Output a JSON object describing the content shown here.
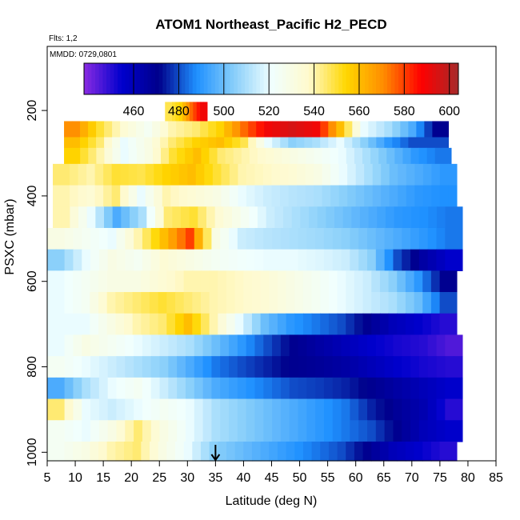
{
  "chart_data": {
    "type": "heatmap",
    "title": "ATOM1 Northeast_Pacific H2_PECD",
    "flights_label": "Flts: 1,2",
    "date_label": "MMDD: 0729,0801",
    "xlabel": "Latitude (deg N)",
    "ylabel": "PSXC (mbar)",
    "xlim": [
      5,
      85
    ],
    "ylim": [
      1020,
      50
    ],
    "y_inverted": true,
    "x_ticks": [
      "5",
      "10",
      "15",
      "20",
      "25",
      "30",
      "35",
      "40",
      "45",
      "50",
      "55",
      "60",
      "65",
      "70",
      "75",
      "80",
      "85"
    ],
    "y_ticks": [
      "200",
      "400",
      "600",
      "800",
      "1000"
    ],
    "marker": {
      "lat": 35,
      "label": "latitude marker"
    },
    "colorbar": {
      "min": 438,
      "max": 604,
      "ticks": [
        "460",
        "480",
        "500",
        "520",
        "540",
        "560",
        "580",
        "600"
      ],
      "colors": [
        "#8a2be2",
        "#0000cd",
        "#00008b",
        "#1e90ff",
        "#87cefa",
        "#f0ffff",
        "#fffacd",
        "#ffd700",
        "#ff8c00",
        "#ff0000",
        "#a52a2a"
      ]
    },
    "layers": [
      {
        "p": 200,
        "x0": 26,
        "x1": 33.5,
        "v": [
          548,
          555,
          575,
          590
        ]
      },
      {
        "p": 250,
        "x0": 8,
        "x1": 76.5,
        "v": [
          570,
          550,
          535,
          525,
          540,
          545,
          555,
          575,
          590,
          595,
          590,
          560,
          520,
          510,
          495,
          470
        ]
      },
      {
        "p": 275,
        "x0": 8,
        "x1": 76.5,
        "v": [
          560,
          545,
          520,
          530,
          545,
          555,
          560,
          548,
          520,
          505,
          510,
          520,
          505,
          490,
          480,
          480
        ]
      },
      {
        "p": 300,
        "x0": 8,
        "x1": 77,
        "v": [
          555,
          540,
          520,
          530,
          550,
          560,
          545,
          540,
          535,
          530,
          525,
          520,
          510,
          500,
          490,
          485
        ]
      },
      {
        "p": 350,
        "x0": 6,
        "x1": 78,
        "v": [
          545,
          540,
          550,
          548,
          555,
          560,
          550,
          540,
          538,
          535,
          530,
          520,
          510,
          500,
          495,
          490
        ]
      },
      {
        "p": 400,
        "x0": 6,
        "x1": 78,
        "v": [
          540,
          535,
          545,
          520,
          540,
          535,
          530,
          520,
          515,
          512,
          510,
          505,
          500,
          495,
          490,
          488
        ]
      },
      {
        "p": 450,
        "x0": 6,
        "x1": 79,
        "v": [
          540,
          520,
          495,
          510,
          545,
          550,
          535,
          525,
          515,
          510,
          505,
          500,
          495,
          490,
          488,
          485
        ]
      },
      {
        "p": 500,
        "x0": 5,
        "x1": 79,
        "v": [
          530,
          525,
          520,
          540,
          560,
          580,
          530,
          515,
          512,
          510,
          508,
          505,
          500,
          495,
          490,
          485
        ]
      },
      {
        "p": 550,
        "x0": 5,
        "x1": 79,
        "v": [
          505,
          520,
          530,
          525,
          535,
          530,
          525,
          522,
          520,
          520,
          518,
          515,
          505,
          480,
          465,
          455
        ]
      },
      {
        "p": 600,
        "x0": 5,
        "x1": 78,
        "v": [
          520,
          525,
          530,
          530,
          535,
          540,
          540,
          538,
          535,
          530,
          525,
          520,
          515,
          505,
          490,
          470
        ]
      },
      {
        "p": 650,
        "x0": 5,
        "x1": 78,
        "v": [
          520,
          525,
          540,
          545,
          550,
          545,
          540,
          538,
          535,
          530,
          525,
          520,
          515,
          510,
          500,
          480
        ]
      },
      {
        "p": 700,
        "x0": 5,
        "x1": 78,
        "v": [
          520,
          520,
          530,
          540,
          545,
          560,
          540,
          520,
          500,
          490,
          485,
          480,
          470,
          460,
          455,
          450
        ]
      },
      {
        "p": 750,
        "x0": 5,
        "x1": 79,
        "v": [
          520,
          530,
          525,
          520,
          515,
          510,
          500,
          490,
          480,
          470,
          465,
          460,
          455,
          452,
          450,
          445
        ]
      },
      {
        "p": 800,
        "x0": 5,
        "x1": 79,
        "v": [
          525,
          520,
          515,
          510,
          505,
          495,
          485,
          480,
          475,
          470,
          468,
          465,
          460,
          455,
          452,
          450
        ]
      },
      {
        "p": 850,
        "x0": 5,
        "x1": 79,
        "v": [
          495,
          510,
          520,
          525,
          515,
          505,
          495,
          490,
          485,
          480,
          478,
          475,
          470,
          465,
          460,
          455
        ]
      },
      {
        "p": 900,
        "x0": 5,
        "x1": 79,
        "v": [
          545,
          520,
          515,
          520,
          525,
          520,
          510,
          505,
          500,
          495,
          490,
          485,
          475,
          468,
          462,
          450
        ]
      },
      {
        "p": 950,
        "x0": 5,
        "x1": 79,
        "v": [
          525,
          520,
          530,
          545,
          530,
          520,
          510,
          505,
          500,
          495,
          490,
          485,
          480,
          470,
          460,
          455
        ]
      },
      {
        "p": 1000,
        "x0": 5,
        "x1": 78,
        "v": [
          525,
          530,
          540,
          545,
          530,
          520,
          505,
          500,
          495,
          490,
          485,
          480,
          470,
          460,
          455,
          450
        ]
      }
    ]
  }
}
